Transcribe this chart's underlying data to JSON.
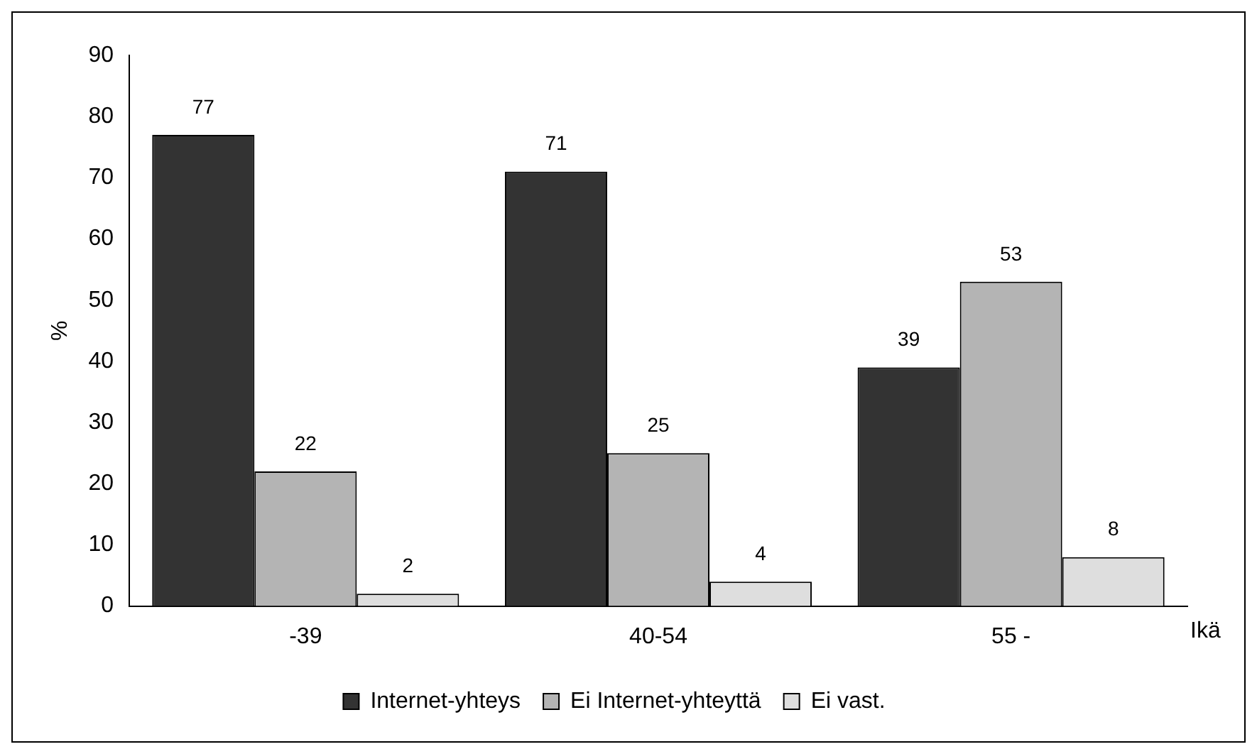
{
  "chart_data": {
    "type": "bar",
    "categories": [
      "-39",
      "40-54",
      "55 -"
    ],
    "series": [
      {
        "name": "Internet-yhteys",
        "color": "#333333",
        "values": [
          77,
          71,
          39
        ]
      },
      {
        "name": "Ei Internet-yhteyttä",
        "color": "#b4b4b4",
        "values": [
          22,
          25,
          53
        ]
      },
      {
        "name": "Ei vast.",
        "color": "#dedede",
        "values": [
          2,
          4,
          8
        ]
      }
    ],
    "ylabel": "%",
    "xlabel": "Ikä",
    "ylim": [
      0,
      90
    ],
    "yticks": [
      0,
      10,
      20,
      30,
      40,
      50,
      60,
      70,
      80,
      90
    ],
    "grid": false,
    "legend": "bottom",
    "data_labels": true
  }
}
